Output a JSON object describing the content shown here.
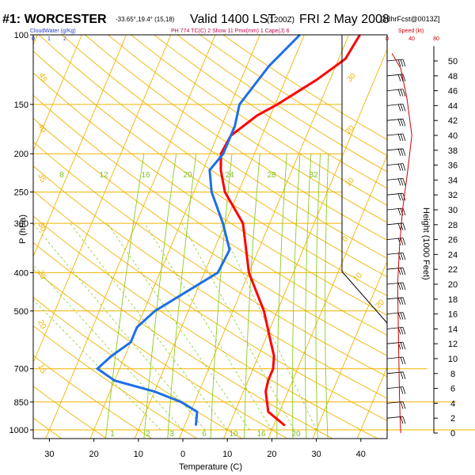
{
  "header": {
    "station": "#1: WORCESTER",
    "coords": "-33.65°,19.4° (15,18)",
    "valid": "Valid 1400 LST",
    "utc": "(1200Z)",
    "date": "FRI 2 May 2008",
    "forecast": "[18hrFcst@0013Z]"
  },
  "legend": {
    "cloudwater": "CloudWater (g/Kg)",
    "cloudwater_ticks": [
      "0",
      "1",
      "2"
    ],
    "params": "PH 774 TC(C)   2 Show 11 Pmx(mm) 1 Cape(J) 6",
    "speed": "Speed (kt)",
    "speed_ticks": [
      "0",
      "40",
      "80"
    ]
  },
  "colors": {
    "grid": "#f0b400",
    "temperature": "#ff0000",
    "dewpoint": "#1e6fe6",
    "mixing_ratio": "#88cc22",
    "wind_speed": "#cc0000",
    "title": "#000000"
  },
  "chart_data": {
    "type": "line",
    "title": "Skew-T log-P sounding",
    "xlabel": "Temperature (C)",
    "ylabel": "P (hPa)",
    "xlim": [
      -35,
      45
    ],
    "ylim": [
      1050,
      100
    ],
    "x_ticks": [
      -30,
      -20,
      -10,
      0,
      10,
      20,
      30,
      40
    ],
    "x_tick_labels": [
      "30",
      "20",
      "10",
      "0",
      "10",
      "20",
      "30",
      "40"
    ],
    "pressure_ticks": [
      100,
      150,
      200,
      250,
      300,
      400,
      500,
      700,
      850,
      1000
    ],
    "height_label": "Height (1000 Feet)",
    "height_ticks": [
      0,
      2,
      4,
      6,
      8,
      10,
      12,
      14,
      16,
      18,
      20,
      22,
      24,
      26,
      28,
      30,
      32,
      34,
      36,
      38,
      40,
      42,
      44,
      46,
      48,
      50
    ],
    "mixing_ratio_labels": [
      "8",
      "12",
      "16",
      "20",
      "24",
      "28",
      "32"
    ],
    "mixing_ratio_bottom_labels": [
      "1",
      "2",
      "3",
      "6",
      "10",
      "16",
      "20"
    ],
    "dry_adiabat_labels": [
      "45",
      "40",
      "35",
      "30",
      "25",
      "20",
      "15",
      "10",
      "5",
      "0",
      "-5",
      "-10",
      "-15"
    ],
    "series": [
      {
        "name": "Temperature",
        "points": [
          [
            22.5,
            975
          ],
          [
            17.5,
            900
          ],
          [
            15.0,
            800
          ],
          [
            14.5,
            750
          ],
          [
            14.5,
            700
          ],
          [
            13.5,
            650
          ],
          [
            11.5,
            600
          ],
          [
            7.0,
            500
          ],
          [
            0.0,
            400
          ],
          [
            -6.0,
            300
          ],
          [
            -13.0,
            250
          ],
          [
            -16.0,
            220
          ],
          [
            -17.5,
            200
          ],
          [
            -17.0,
            180
          ],
          [
            -13.0,
            160
          ],
          [
            -9.5,
            150
          ],
          [
            -3.0,
            130
          ],
          [
            1.5,
            115
          ],
          [
            2.5,
            100
          ]
        ]
      },
      {
        "name": "Dewpoint",
        "points": [
          [
            2.5,
            975
          ],
          [
            1.5,
            900
          ],
          [
            -3.0,
            850
          ],
          [
            -10.0,
            800
          ],
          [
            -20.0,
            750
          ],
          [
            -25.0,
            700
          ],
          [
            -23.0,
            650
          ],
          [
            -20.0,
            600
          ],
          [
            -20.0,
            550
          ],
          [
            -17.5,
            500
          ],
          [
            -7.0,
            400
          ],
          [
            -6.5,
            350
          ],
          [
            -10.5,
            300
          ],
          [
            -16.0,
            250
          ],
          [
            -18.5,
            220
          ],
          [
            -17.0,
            200
          ],
          [
            -17.0,
            170
          ],
          [
            -18.0,
            150
          ],
          [
            -15.0,
            120
          ],
          [
            -11.0,
            100
          ]
        ]
      },
      {
        "name": "Wind speed",
        "points": [
          [
            22,
            0
          ],
          [
            21,
            2
          ],
          [
            20,
            5
          ],
          [
            19,
            10
          ],
          [
            18,
            15
          ],
          [
            17,
            20
          ],
          [
            20,
            25
          ],
          [
            25,
            30
          ],
          [
            33,
            35
          ],
          [
            40,
            40
          ],
          [
            32,
            45
          ],
          [
            22,
            49
          ],
          [
            8,
            51
          ]
        ]
      }
    ],
    "wind_barb_heights": [
      2,
      4,
      6,
      8,
      10,
      12,
      14,
      16,
      18,
      20,
      22,
      24,
      26,
      28,
      30,
      32,
      34,
      36,
      38,
      40,
      42,
      44,
      46,
      48,
      50
    ]
  }
}
